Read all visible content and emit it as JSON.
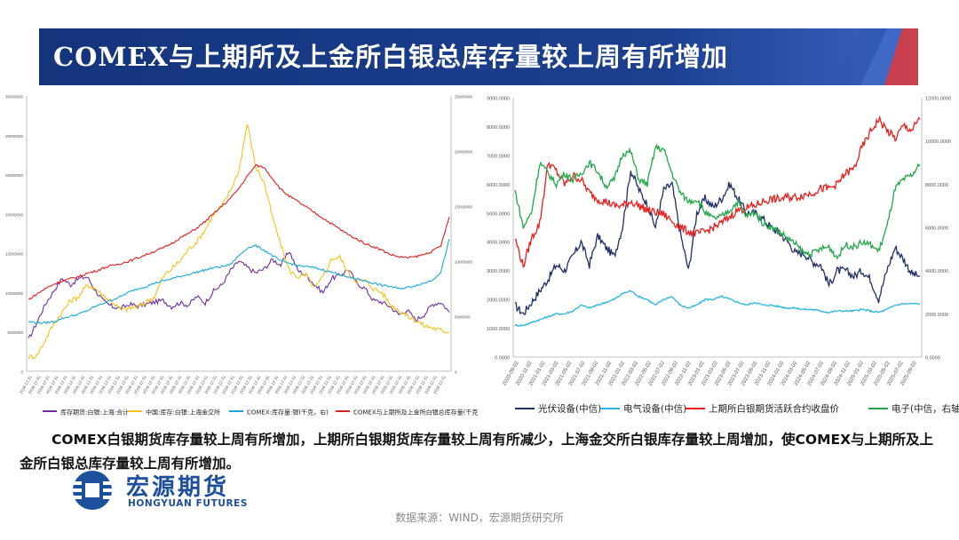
{
  "title": "COMEX与上期所及上金所白银总库存量较上周有所增加",
  "description": "COMEX白银期货库存量较上周有所增加，上期所白银期货库存量较上周有所减少，上海金交所白银库存量较上周增加，使COMEX与上期所及上金所白银总库存量较上周有所增加。",
  "logo": {
    "cn": "宏源期货",
    "en": "HONGYUAN FUTURES"
  },
  "source": "数据来源：WIND，宏源期货研究所",
  "colors": {
    "title_bg": "#1c3f8f",
    "title_accent": "#e03a3a"
  },
  "chart_data": [
    {
      "type": "line",
      "ylim_left": [
        0,
        35000000
      ],
      "ylim_right": [
        0,
        25000000
      ],
      "y_ticks_left": [
        "35000000",
        "30000000",
        "25000000",
        "20000000",
        "15000000",
        "10000000",
        "5000000",
        "0"
      ],
      "y_ticks_right": [
        "25000000",
        "20000000",
        "15000000",
        "10000000",
        "5000000",
        "0"
      ],
      "x_tick_count": 48,
      "x_tick_label": "2016-12-31",
      "series": [
        {
          "name": "库存期货:白银:上海:合计",
          "color": "#7030a0",
          "axis": "left",
          "values": [
            4000000,
            6200000,
            8500000,
            10200000,
            11800000,
            11000000,
            11800000,
            12000000,
            10200000,
            8800000,
            8200000,
            8000000,
            8500000,
            8300000,
            8500000,
            8800000,
            9000000,
            8200000,
            8700000,
            8400000,
            9500000,
            8700000,
            10200000,
            11000000,
            12800000,
            14000000,
            13200000,
            12500000,
            13000000,
            14200000,
            13500000,
            15300000,
            12800000,
            12200000,
            11000000,
            10000000,
            11800000,
            12200000,
            13000000,
            11200000,
            10500000,
            9000000,
            8800000,
            8200000,
            7200000,
            7800000,
            6500000,
            7200000,
            8500000,
            8800000,
            7500000
          ]
        },
        {
          "name": "中国:库存:白银:上海金交所",
          "color": "#f5c21c",
          "axis": "left",
          "values": [
            1800000,
            2000000,
            4000000,
            6000000,
            7500000,
            9000000,
            9500000,
            11000000,
            10500000,
            9500000,
            8800000,
            7800000,
            8000000,
            8200000,
            8800000,
            9500000,
            12000000,
            13000000,
            14000000,
            15500000,
            16500000,
            18000000,
            20000000,
            21000000,
            23000000,
            25500000,
            31500000,
            26000000,
            24000000,
            19500000,
            16000000,
            12800000,
            12000000,
            12200000,
            10500000,
            12000000,
            14300000,
            14500000,
            12500000,
            11500000,
            11500000,
            10500000,
            10000000,
            8500000,
            7800000,
            7000000,
            6500000,
            5800000,
            5500000,
            5200000,
            5000000
          ]
        },
        {
          "name": "COMEX:库存量:银(千克，右)",
          "color": "#17a9d9",
          "axis": "right",
          "values": [
            4500000,
            4400000,
            4400000,
            4500000,
            4800000,
            5000000,
            5200000,
            5500000,
            5900000,
            6200000,
            6500000,
            6800000,
            7200000,
            7500000,
            7700000,
            8000000,
            8200000,
            8400000,
            8600000,
            8800000,
            9000000,
            9200000,
            9400000,
            9500000,
            9700000,
            10500000,
            11200000,
            11400000,
            11000000,
            10500000,
            10000000,
            9800000,
            9600000,
            9500000,
            9400000,
            9200000,
            9000000,
            8800000,
            8500000,
            8400000,
            8200000,
            8000000,
            7800000,
            7700000,
            7500000,
            7600000,
            7800000,
            8000000,
            8300000,
            9000000,
            12000000
          ]
        },
        {
          "name": "COMEX与上期所及上金所白银总库存量(千克，右)",
          "color": "#e02020",
          "axis": "right",
          "values": [
            6500000,
            7000000,
            7500000,
            7900000,
            8200000,
            8400000,
            8600000,
            8900000,
            9100000,
            9400000,
            9600000,
            9800000,
            10000000,
            10300000,
            10600000,
            10900000,
            11200000,
            11600000,
            12100000,
            12500000,
            13000000,
            13600000,
            14300000,
            15000000,
            15700000,
            16600000,
            17700000,
            18700000,
            18500000,
            17500000,
            16500000,
            15900000,
            15400000,
            14900000,
            14400000,
            13900000,
            13400000,
            12900000,
            12400000,
            12000000,
            11600000,
            11300000,
            11000000,
            10600000,
            10400000,
            10300000,
            10400000,
            10600000,
            10900000,
            11400000,
            14000000
          ]
        }
      ]
    },
    {
      "type": "line",
      "ylim_left": [
        0,
        9000
      ],
      "ylim_right": [
        0,
        12000
      ],
      "y_ticks_left": [
        "9000.0000",
        "8000.0000",
        "7000.0000",
        "6000.0000",
        "5000.0000",
        "4000.0000",
        "3000.0000",
        "2000.0000",
        "1000.0000",
        "0.0000"
      ],
      "y_ticks_right": [
        "12000.0000",
        "10000.0000",
        "8000.0000",
        "6000.0000",
        "4000.0000",
        "2000.0000",
        "0.0000"
      ],
      "x_ticks": [
        "2020-09-02",
        "2020-11-02",
        "2021-01-02",
        "2021-03-02",
        "2021-05-02",
        "2021-07-02",
        "2021-09-02",
        "2021-11-02",
        "2022-01-02",
        "2022-03-02",
        "2022-05-02",
        "2022-07-02",
        "2022-09-02",
        "2022-11-02",
        "2023-01-02",
        "2023-03-02",
        "2023-05-02",
        "2023-07-02",
        "2023-09-02",
        "2023-11-02",
        "2024-01-02",
        "2024-03-02",
        "2024-05-02",
        "2024-07-02",
        "2024-09-02",
        "2024-11-02",
        "2025-01-02",
        "2025-03-02",
        "2025-05-02",
        "2025-07-02",
        "2025-09-02"
      ],
      "series": [
        {
          "name": "光伏设备(中信)",
          "color": "#1f2f6b",
          "axis": "left",
          "values": [
            1800,
            1500,
            1900,
            2300,
            2700,
            3200,
            3000,
            3500,
            4000,
            3200,
            4200,
            3800,
            3500,
            4500,
            6500,
            5800,
            5300,
            4500,
            5800,
            6000,
            4300,
            3000,
            5000,
            5500,
            5200,
            5500,
            6000,
            5500,
            5000,
            5000,
            4800,
            4500,
            4300,
            4000,
            3600,
            3600,
            3300,
            3200,
            2500,
            3000,
            3000,
            2800,
            3000,
            2700,
            2000,
            3000,
            3800,
            3400,
            2900,
            2800
          ]
        },
        {
          "name": "电气设备(中信)",
          "color": "#26b5e6",
          "axis": "left",
          "values": [
            1100,
            1100,
            1200,
            1300,
            1400,
            1500,
            1500,
            1600,
            1800,
            1700,
            1800,
            1900,
            2000,
            2200,
            2300,
            2100,
            2000,
            1800,
            2000,
            2100,
            1800,
            1700,
            1800,
            2000,
            2000,
            2100,
            2000,
            1900,
            1800,
            1900,
            1800,
            1800,
            1750,
            1700,
            1700,
            1650,
            1650,
            1600,
            1550,
            1600,
            1600,
            1600,
            1650,
            1600,
            1550,
            1650,
            1800,
            1850,
            1850,
            1850
          ]
        },
        {
          "name": "上期所白银期货活跃合约收盘价",
          "color": "#ee1c1c",
          "axis": "right",
          "values": [
            5500,
            4200,
            5500,
            6200,
            9000,
            8600,
            8000,
            8400,
            8200,
            7600,
            7300,
            7200,
            7000,
            7000,
            7200,
            7000,
            6800,
            6700,
            6600,
            6300,
            6000,
            5800,
            5700,
            5800,
            6000,
            6200,
            6500,
            6800,
            6900,
            7000,
            7200,
            7300,
            7300,
            7400,
            7400,
            7500,
            7600,
            7800,
            7800,
            8000,
            8500,
            8700,
            9700,
            10400,
            11000,
            10500,
            10100,
            10700,
            10500,
            11000
          ]
        },
        {
          "name": "电子(中信，右轴)",
          "color": "#21a84a",
          "axis": "right",
          "values": [
            7700,
            6000,
            6700,
            9000,
            8500,
            8000,
            8500,
            8200,
            8500,
            9000,
            8600,
            7900,
            8200,
            9400,
            9500,
            8200,
            8000,
            9700,
            9600,
            8500,
            7600,
            7200,
            7300,
            6700,
            6400,
            6500,
            6800,
            7200,
            6500,
            6700,
            6200,
            6000,
            5800,
            5500,
            5200,
            4800,
            4800,
            5000,
            5100,
            4600,
            5200,
            5100,
            5300,
            5200,
            4900,
            6000,
            7800,
            8200,
            8400,
            8900
          ]
        }
      ]
    }
  ]
}
